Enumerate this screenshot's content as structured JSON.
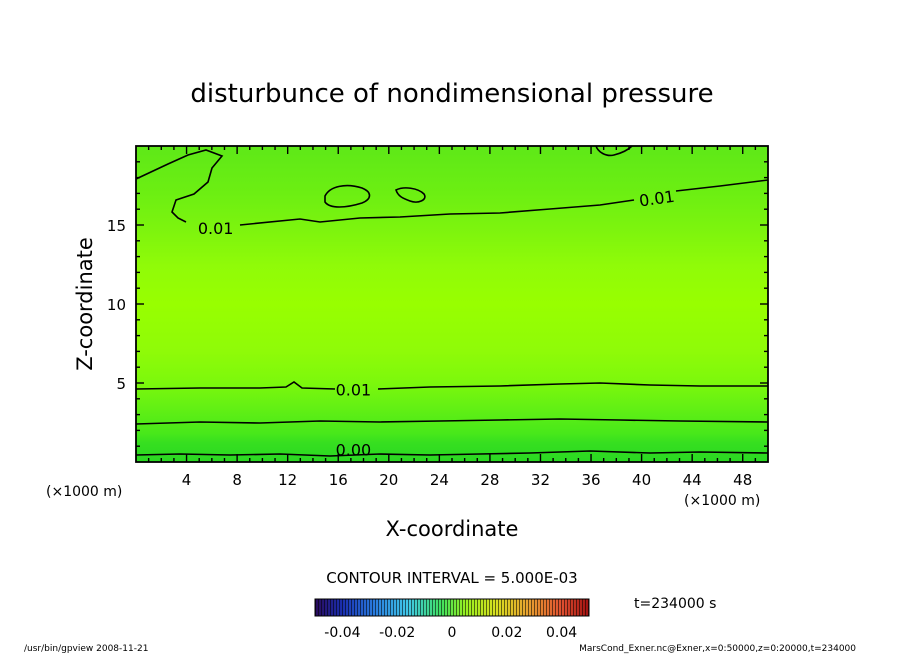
{
  "chart_data": {
    "type": "contour",
    "title": "disturbunce of nondimensional pressure",
    "xlabel": "X-coordinate",
    "ylabel": "Z-coordinate",
    "x_unit_label": "(×1000 m)",
    "z_unit_label": "(×1000 m)",
    "xlim": [
      0,
      50
    ],
    "ylim": [
      0,
      20
    ],
    "x_ticks": [
      4,
      8,
      12,
      16,
      20,
      24,
      28,
      32,
      36,
      40,
      44,
      48
    ],
    "y_ticks": [
      5,
      10,
      15
    ],
    "contour_interval_text": "CONTOUR INTERVAL = 5.000E-03",
    "contour_labels": [
      {
        "text": "0.01",
        "x": 6.3,
        "z": 14.8
      },
      {
        "text": "0.01",
        "x": 41.2,
        "z": 16.7
      },
      {
        "text": "0.01",
        "x": 17.2,
        "z": 4.6
      },
      {
        "text": "0.00",
        "x": 17.2,
        "z": 0.8
      }
    ],
    "colorbar": {
      "ticks": [
        "-0.04",
        "-0.02",
        "0",
        "0.02",
        "0.04"
      ],
      "range": [
        -0.05,
        0.05
      ]
    },
    "time_label": "t=234000  s",
    "footer_left": "/usr/bin/gpview   2008-11-21",
    "footer_right": "MarsCond_Exner.nc@Exner,x=0:50000,z=0:20000,t=234000"
  }
}
